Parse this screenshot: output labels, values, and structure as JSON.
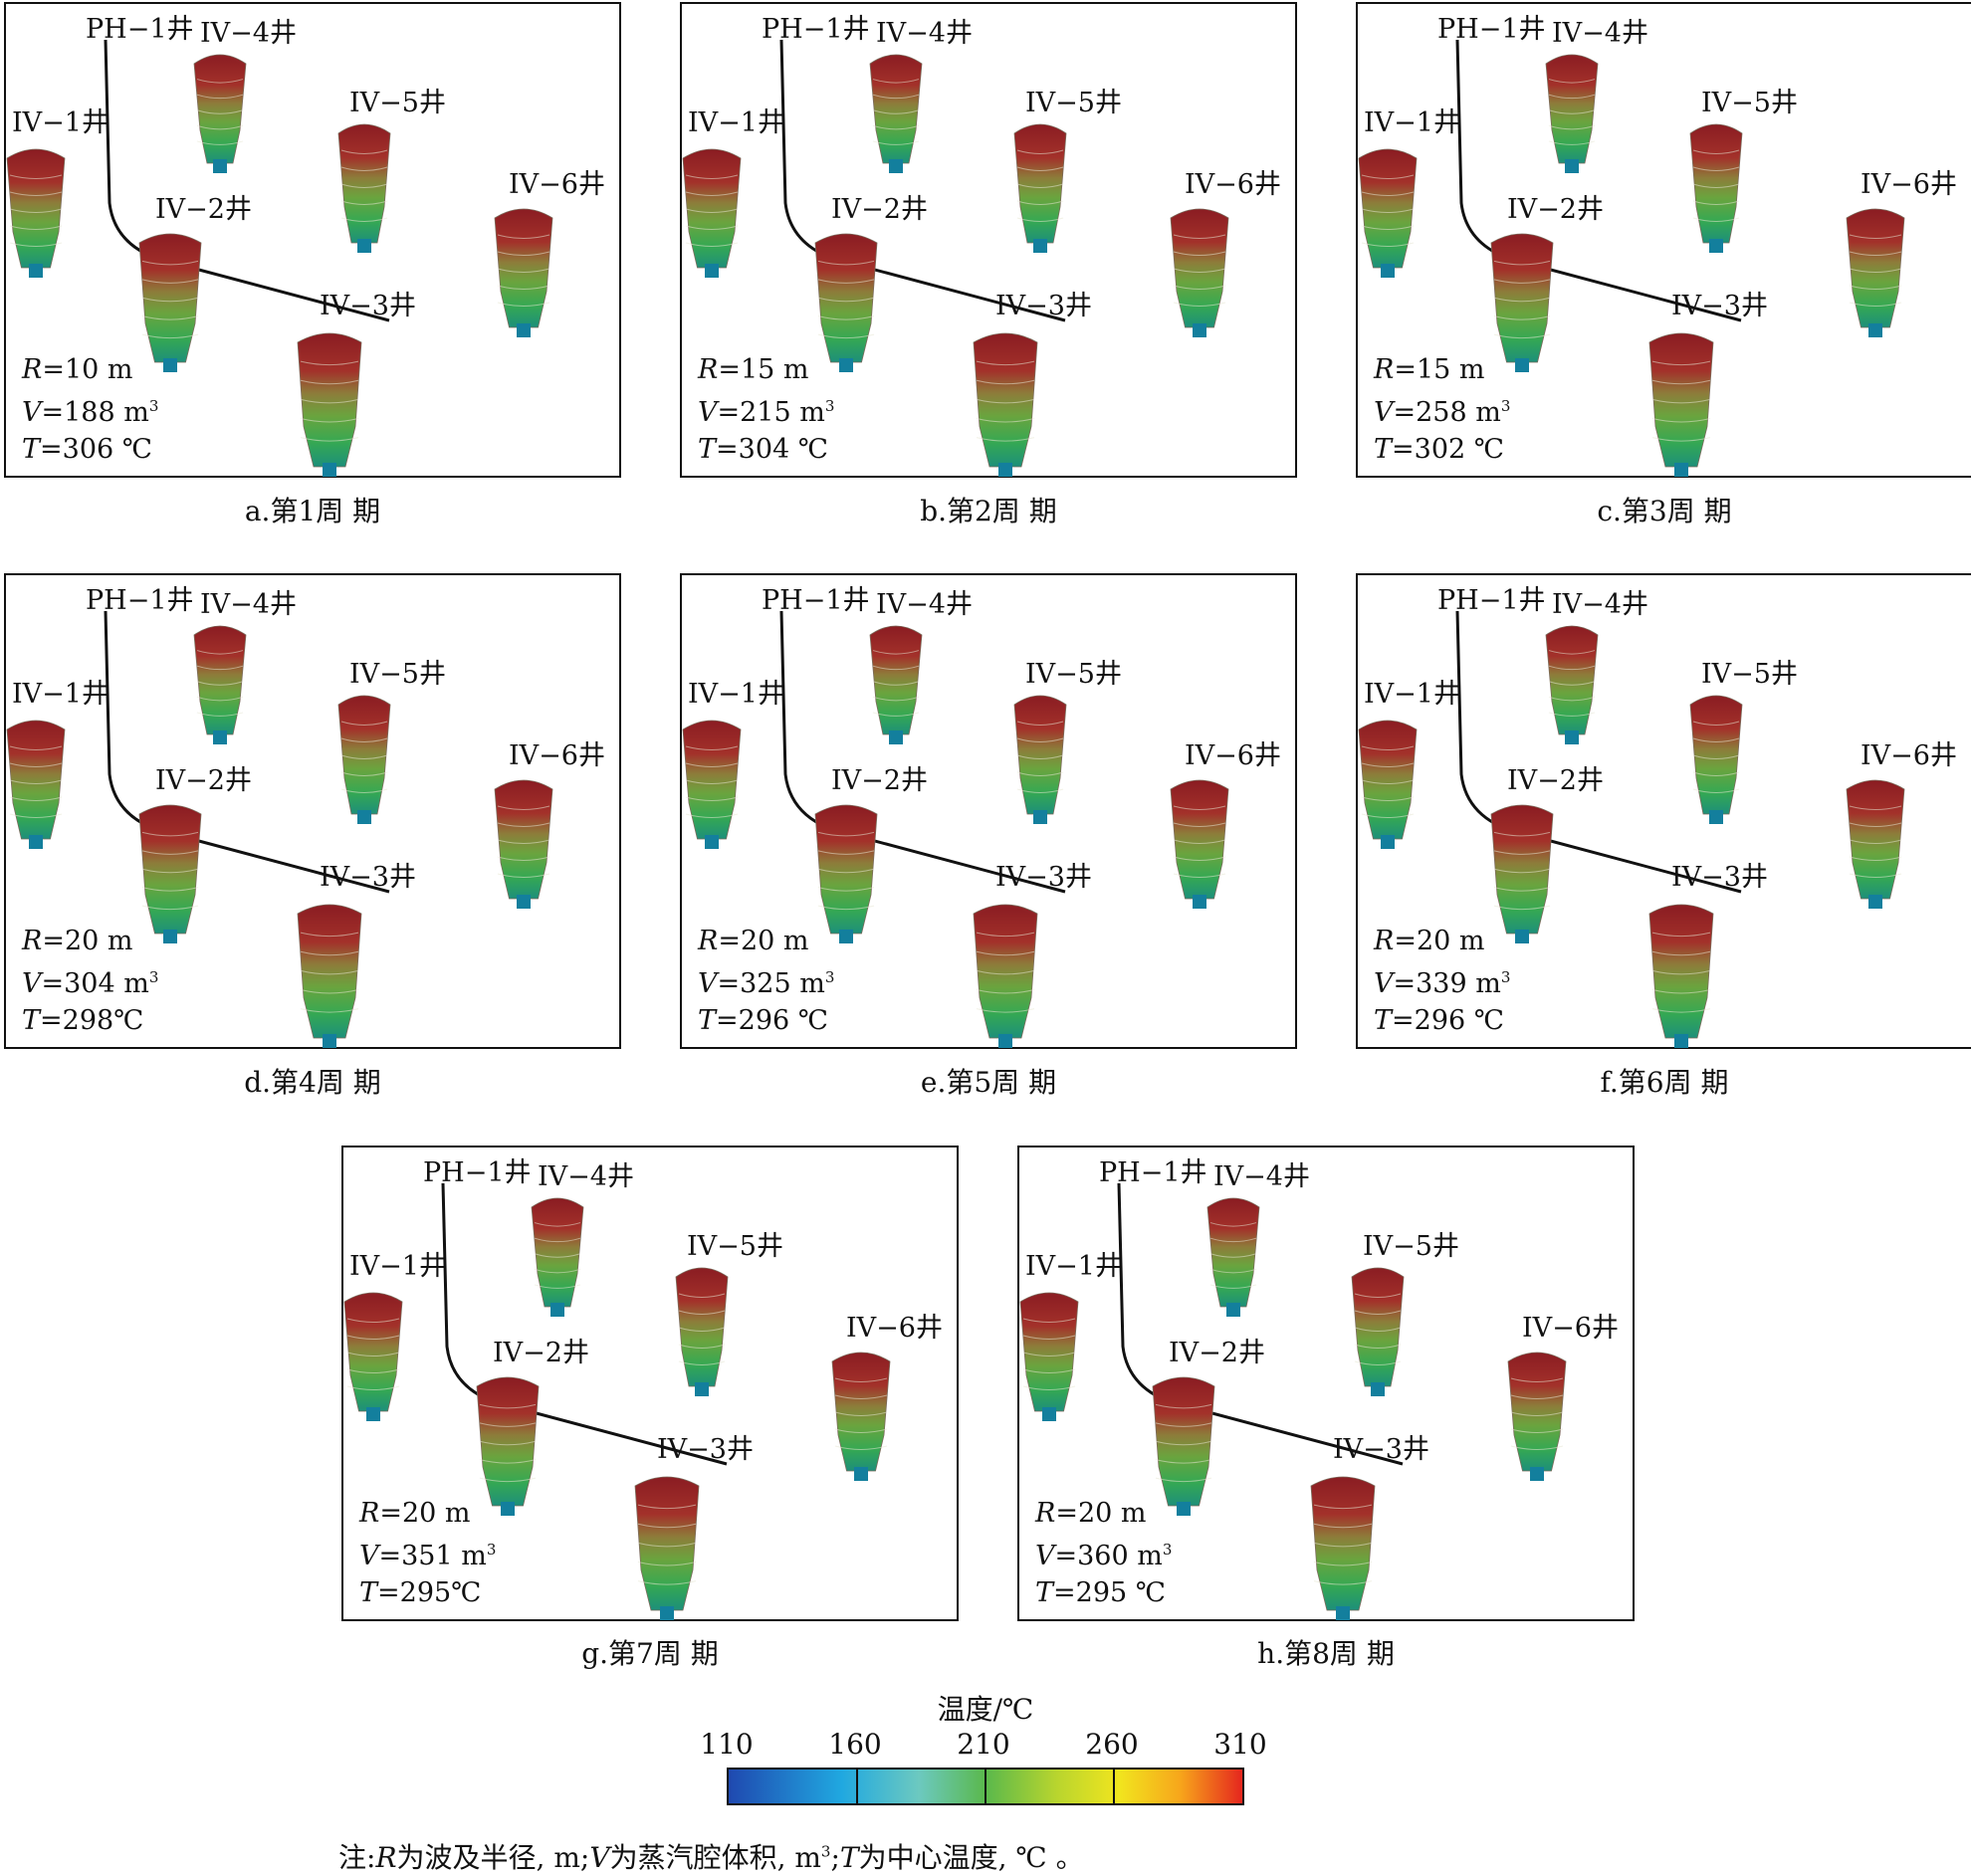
{
  "panels": [
    {
      "caption": "a.第1周 期",
      "R": "10",
      "V": "188",
      "T": "306 ℃"
    },
    {
      "caption": "b.第2周 期",
      "R": "15",
      "V": "215",
      "T": "304 ℃"
    },
    {
      "caption": "c.第3周 期",
      "R": "15",
      "V": "258",
      "T": "302 ℃"
    },
    {
      "caption": "d.第4周 期",
      "R": "20",
      "V": "304",
      "T": "298℃"
    },
    {
      "caption": "e.第5周 期",
      "R": "20",
      "V": "325",
      "T": "296 ℃"
    },
    {
      "caption": "f.第6周 期",
      "R": "20",
      "V": "339",
      "T": "296 ℃"
    },
    {
      "caption": "g.第7周 期",
      "R": "20",
      "V": "351",
      "T": "295℃"
    },
    {
      "caption": "h.第8周 期",
      "R": "20",
      "V": "360",
      "T": "295 ℃"
    }
  ],
  "wells": {
    "ph1": "PH−1井",
    "iv1": "IV−1井",
    "iv2": "IV−2井",
    "iv3": "IV−3井",
    "iv4": "IV−4井",
    "iv5": "IV−5井",
    "iv6": "IV−6井"
  },
  "params_labels": {
    "R": "R",
    "V": "V",
    "T": "T",
    "eq": "=",
    "r_unit": " m",
    "v_unit": " m",
    "sup3": "3"
  },
  "legend": {
    "title": "温度/℃",
    "ticks": [
      "110",
      "160",
      "210",
      "260",
      "310"
    ],
    "colors": [
      "#1f49b0",
      "#20a8e0",
      "#6cc9c0",
      "#5ab84c",
      "#b9d52e",
      "#f1e51e",
      "#f7a51b",
      "#e5261e"
    ]
  },
  "note": {
    "prefix": "注:",
    "R": "R",
    "r_text": "为波及半径, m;",
    "V": "V",
    "v_text": "为蒸汽腔体积, m",
    "sup3": "3",
    "sep": ";",
    "T": "T",
    "t_text": "为中心温度, ℃ 。"
  }
}
